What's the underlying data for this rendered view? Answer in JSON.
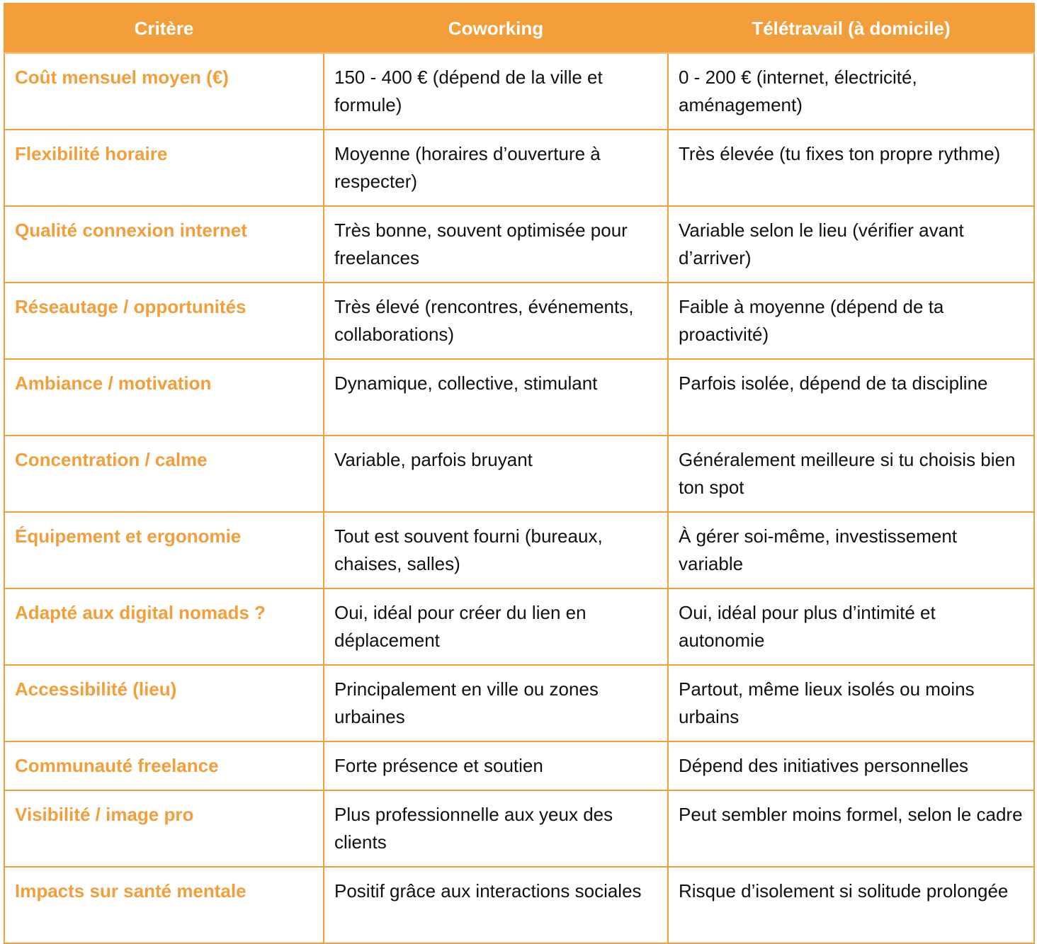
{
  "table": {
    "accent_color": "#f29f3b",
    "headers": [
      "Critère",
      "Coworking",
      "Télétravail (à domicile)"
    ],
    "rows": [
      {
        "critere": "Coût mensuel moyen (€)",
        "coworking": "150 - 400 € (dépend de la ville et formule)",
        "teletravail": "0 - 200 € (internet, électricité, aménagement)"
      },
      {
        "critere": "Flexibilité horaire",
        "coworking": "Moyenne (horaires d’ouverture à respecter)",
        "teletravail": "Très élevée (tu fixes ton propre rythme)"
      },
      {
        "critere": "Qualité connexion internet",
        "coworking": "Très bonne, souvent optimisée pour freelances",
        "teletravail": "Variable selon le lieu (vérifier avant d’arriver)"
      },
      {
        "critere": "Réseautage / opportunités",
        "coworking": "Très élevé (rencontres, événements, collaborations)",
        "teletravail": "Faible à moyenne (dépend de ta proactivité)"
      },
      {
        "critere": "Ambiance / motivation",
        "coworking": "Dynamique, collective, stimulant",
        "teletravail": "Parfois isolée, dépend de ta discipline"
      },
      {
        "critere": "Concentration / calme",
        "coworking": "Variable, parfois bruyant",
        "teletravail": "Généralement meilleure si tu choisis bien ton spot"
      },
      {
        "critere": "Équipement et ergonomie",
        "coworking": "Tout est souvent fourni (bureaux, chaises, salles)",
        "teletravail": "À gérer soi-même, investissement variable"
      },
      {
        "critere": "Adapté aux digital nomads ?",
        "coworking": "Oui, idéal pour créer du lien en déplacement",
        "teletravail": "Oui, idéal pour plus d’intimité et autonomie"
      },
      {
        "critere": "Accessibilité (lieu)",
        "coworking": "Principalement en ville ou zones urbaines",
        "teletravail": "Partout, même lieux isolés ou moins urbains"
      },
      {
        "critere": "Communauté freelance",
        "coworking": "Forte présence et soutien",
        "teletravail": "Dépend des initiatives personnelles"
      },
      {
        "critere": "Visibilité / image pro",
        "coworking": "Plus professionnelle aux yeux des clients",
        "teletravail": "Peut sembler moins formel, selon le cadre"
      },
      {
        "critere": "Impacts sur santé mentale",
        "coworking": "Positif grâce aux interactions sociales",
        "teletravail": "Risque d’isolement si solitude prolongée"
      }
    ]
  }
}
